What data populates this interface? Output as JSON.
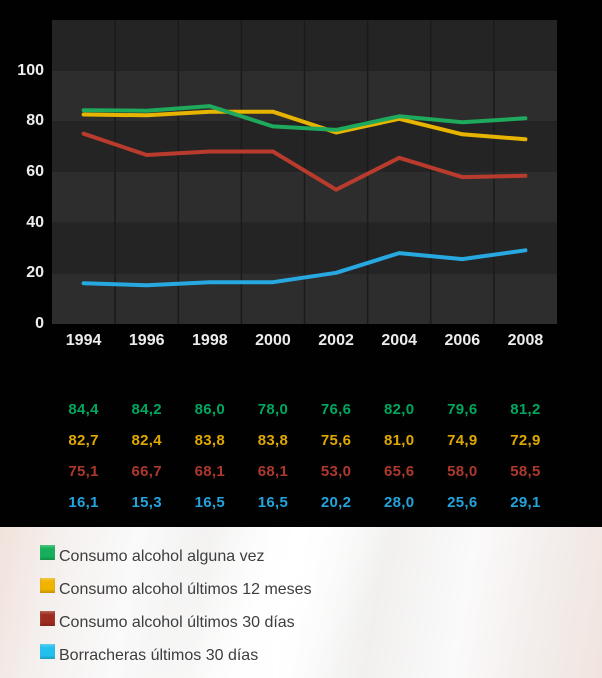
{
  "chart_data": {
    "type": "line",
    "title": "",
    "xlabel": "",
    "ylabel": "",
    "x": [
      1994,
      1996,
      1998,
      2000,
      2002,
      2004,
      2006,
      2008
    ],
    "series": [
      {
        "name": "Consumo alcohol alguna vez",
        "color": "#1ea95c",
        "values": [
          84.4,
          84.2,
          86.0,
          78.0,
          76.6,
          82.0,
          79.6,
          81.2
        ]
      },
      {
        "name": "Consumo alcohol últimos 12 meses",
        "color": "#e7b400",
        "values": [
          82.7,
          82.4,
          83.8,
          83.8,
          75.6,
          81.0,
          74.9,
          72.9
        ]
      },
      {
        "name": "Consumo alcohol últimos 30 días",
        "color": "#b93b2d",
        "values": [
          75.1,
          66.7,
          68.1,
          68.1,
          53.0,
          65.6,
          58.0,
          58.5
        ]
      },
      {
        "name": "Borracheras últimos 30 días",
        "color": "#28a8e0",
        "values": [
          16.1,
          15.3,
          16.5,
          16.5,
          20.2,
          28.0,
          25.6,
          29.1
        ]
      }
    ],
    "ylim": [
      0,
      120
    ],
    "y_ticks": [
      0,
      20,
      40,
      60,
      80,
      100
    ],
    "grid": true,
    "legend_position": "bottom",
    "band_colors": [
      "#2d2d2d",
      "#242424"
    ],
    "grid_color": "#1a1a1a",
    "line_width": 4
  },
  "table": {
    "rows": [
      {
        "name": "Consumo alcohol alguna vez",
        "color": "#00a75e",
        "values": [
          "84,4",
          "84,2",
          "86,0",
          "78,0",
          "76,6",
          "82,0",
          "79,6",
          "81,2"
        ]
      },
      {
        "name": "Consumo alcohol últimos 12 meses",
        "color": "#dfa800",
        "values": [
          "82,7",
          "82,4",
          "83,8",
          "83,8",
          "75,6",
          "81,0",
          "74,9",
          "72,9"
        ]
      },
      {
        "name": "Consumo alcohol últimos 30 días",
        "color": "#ad392c",
        "values": [
          "75,1",
          "66,7",
          "68,1",
          "68,1",
          "53,0",
          "65,6",
          "58,0",
          "58,5"
        ]
      },
      {
        "name": "Borracheras últimos 30 días",
        "color": "#24a3dc",
        "values": [
          "16,1",
          "15,3",
          "16,5",
          "16,5",
          "20,2",
          "28,0",
          "25,6",
          "29,1"
        ]
      }
    ]
  },
  "legend": {
    "items": [
      {
        "label": "Consumo alcohol alguna vez",
        "color": "#16b05a"
      },
      {
        "label": "Consumo alcohol últimos 12 meses",
        "color": "#f0b400"
      },
      {
        "label": "Consumo alcohol últimos 30 días",
        "color": "#9e2b1f"
      },
      {
        "label": "Borracheras últimos 30 días",
        "color": "#22c0ef"
      }
    ]
  }
}
